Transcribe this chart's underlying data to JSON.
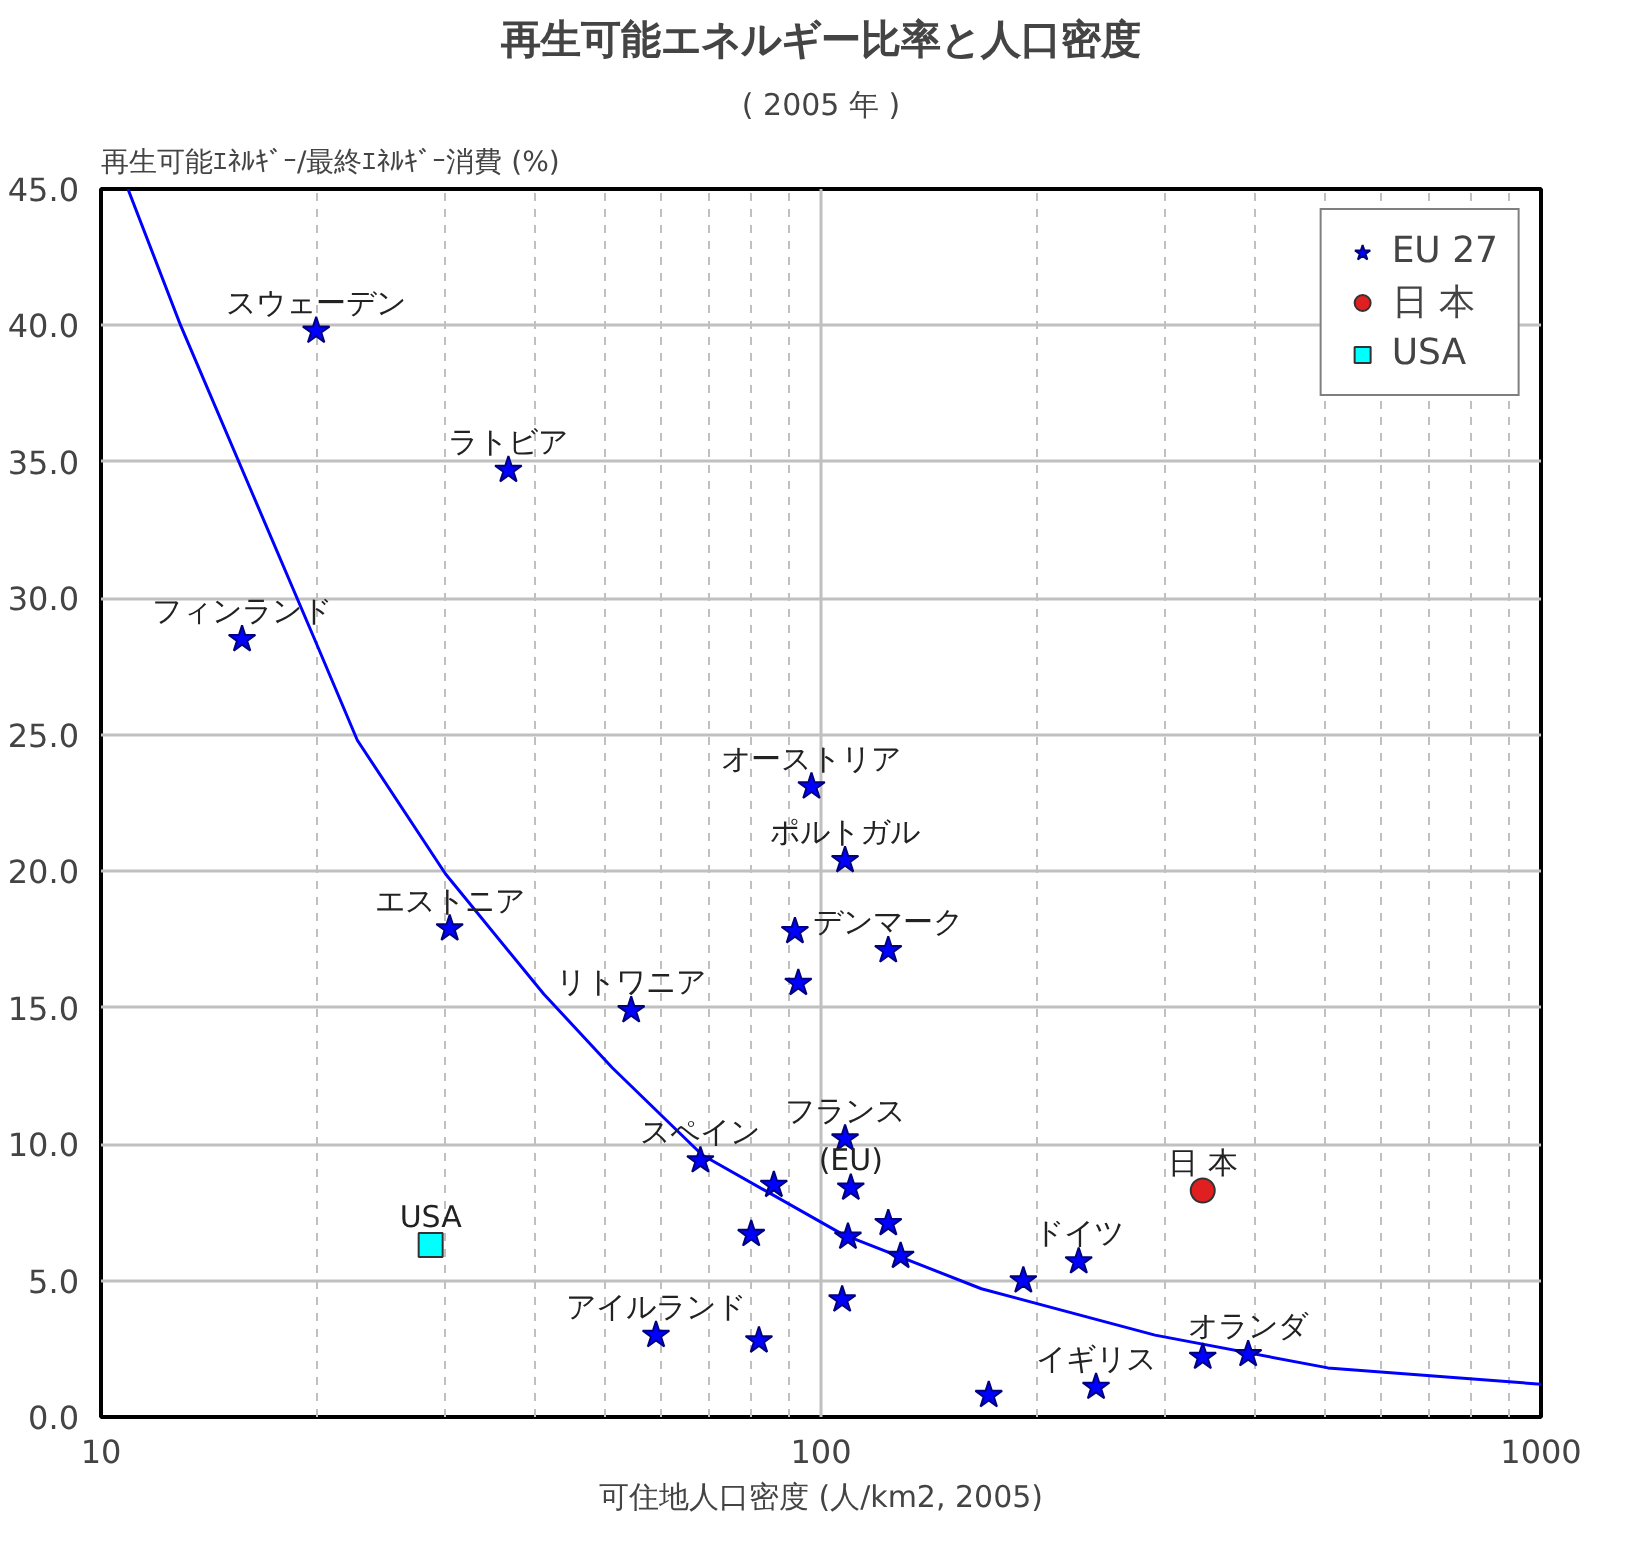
{
  "chart_data": {
    "type": "scatter",
    "title": "再生可能エネルギー比率と人口密度",
    "subtitle": "( 2005 年 )",
    "ylabel": "再生可能ｴﾈﾙｷﾞｰ/最終ｴﾈﾙｷﾞｰ消費 (%)",
    "xlabel": "可住地人口密度 (人/km2, 2005)",
    "log": "x",
    "xlim": [
      10,
      1000
    ],
    "xticks": [
      10,
      100,
      1000
    ],
    "ylim": [
      0,
      45
    ],
    "yticks": [
      {
        "value": 0,
        "label": "0.0"
      },
      {
        "value": 5,
        "label": "5.0"
      },
      {
        "value": 10,
        "label": "10.0"
      },
      {
        "value": 15,
        "label": "15.0"
      },
      {
        "value": 20,
        "label": "20.0"
      },
      {
        "value": 25,
        "label": "25.0"
      },
      {
        "value": 30,
        "label": "30.0"
      },
      {
        "value": 35,
        "label": "35.0"
      },
      {
        "value": 40,
        "label": "40.0"
      },
      {
        "value": 45,
        "label": "45.0"
      }
    ],
    "grid": true,
    "legend": "top right",
    "series": [
      {
        "type": "line",
        "color": "#0000ff",
        "marker": "none",
        "x": [
          10.9,
          12.9,
          19.8,
          22.7,
          30.1,
          41.2,
          51.3,
          68.4,
          107,
          167,
          291,
          506,
          1000
        ],
        "values": [
          45,
          40.0,
          28.5,
          24.8,
          19.9,
          15.5,
          12.8,
          9.6,
          6.7,
          4.7,
          3.0,
          1.8,
          1.2
        ]
      },
      {
        "name": "EU 27",
        "color": "#000080",
        "marker": "star",
        "x": [
          19.9,
          36.8,
          15.7,
          97,
          108,
          92,
          124,
          93,
          30.5,
          54.5,
          68,
          86,
          80,
          108,
          110,
          124,
          109,
          129,
          107,
          59,
          82,
          171,
          191,
          228,
          241,
          339,
          392
        ],
        "values": [
          39.8,
          34.7,
          28.5,
          23.1,
          20.4,
          17.8,
          17.1,
          15.9,
          17.9,
          14.9,
          9.4,
          8.5,
          6.7,
          10.2,
          8.4,
          7.1,
          6.6,
          5.9,
          4.3,
          3.0,
          2.8,
          0.8,
          5.0,
          5.7,
          1.1,
          2.2,
          2.3
        ]
      },
      {
        "name": "日 本",
        "color": "#e02020",
        "marker": "circle",
        "x": [
          339
        ],
        "values": [
          8.3
        ]
      },
      {
        "name": "USA",
        "color": "#00ffff",
        "marker": "square",
        "x": [
          28.7
        ],
        "values": [
          6.3
        ]
      }
    ],
    "annotations": [
      {
        "text": "スウェーデン",
        "x": 19.9,
        "y": 39.8
      },
      {
        "text": "ラトビア",
        "x": 36.8,
        "y": 34.7
      },
      {
        "text": "フィンランド",
        "x": 15.7,
        "y": 28.5
      },
      {
        "text": "オーストリア",
        "x": 97,
        "y": 23.1
      },
      {
        "text": "ポルトガル",
        "x": 108,
        "y": 20.4
      },
      {
        "text": "デンマーク",
        "x": 124,
        "y": 17.1
      },
      {
        "text": "エストニア",
        "x": 30.5,
        "y": 17.9
      },
      {
        "text": "リトワニア",
        "x": 54.5,
        "y": 14.9
      },
      {
        "text": "フランス",
        "x": 108,
        "y": 10.2
      },
      {
        "text": "スペイン",
        "x": 68,
        "y": 9.4
      },
      {
        "text": "(EU)",
        "x": 110,
        "y": 8.4
      },
      {
        "text": "アイルランド",
        "x": 59,
        "y": 3.0
      },
      {
        "text": "ドイツ",
        "x": 228,
        "y": 5.7
      },
      {
        "text": "イギリス",
        "x": 241,
        "y": 1.1
      },
      {
        "text": "オランダ",
        "x": 392,
        "y": 2.3
      },
      {
        "text": "USA",
        "x": 28.7,
        "y": 6.3
      },
      {
        "text": "日 本",
        "x": 339,
        "y": 8.3
      }
    ]
  }
}
